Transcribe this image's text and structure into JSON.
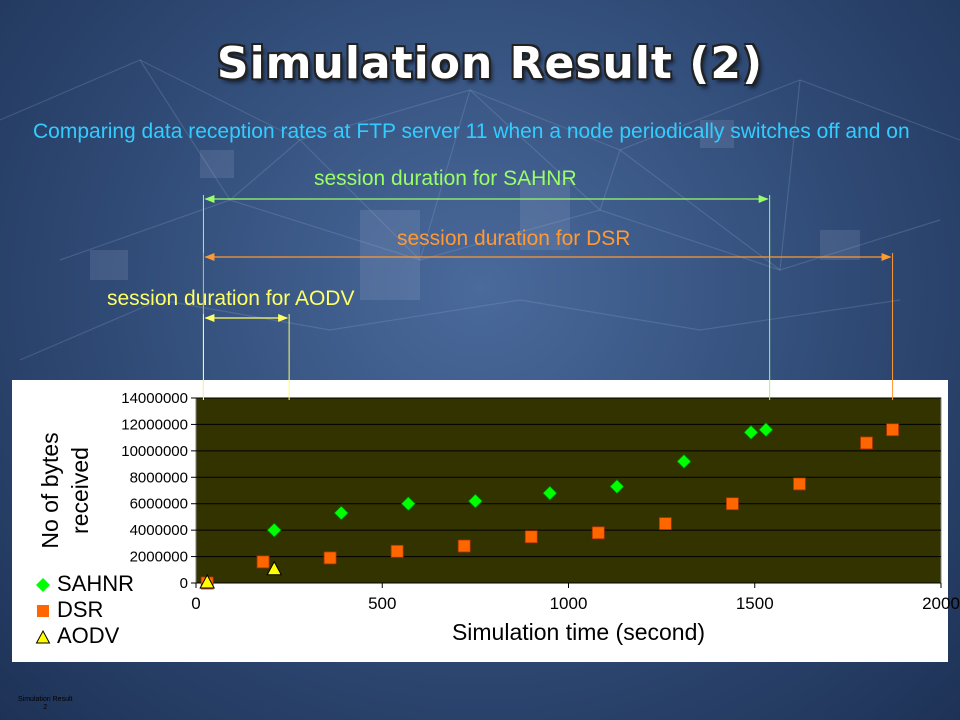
{
  "slide": {
    "title": "Simulation Result (2)",
    "subtitle": "Comparing data reception rates at FTP server 11 when a node periodically switches off and on",
    "footer_title": "Simulation Result",
    "footer_page": "2",
    "colors": {
      "title": "#ffffff",
      "subtitle": "#33ccff",
      "sahnr": "#00ff00",
      "dsr": "#ff6600",
      "aodv": "#ffff00",
      "plot_bg": "#333300"
    }
  },
  "annotations": [
    {
      "text": "session duration for SAHNR",
      "color": "#99ff66",
      "start_x": 20,
      "end_x": 1540
    },
    {
      "text": "session duration for DSR",
      "color": "#ff9933",
      "start_x": 20,
      "end_x": 1870
    },
    {
      "text": "session duration for AODV",
      "color": "#ffff66",
      "start_x": 20,
      "end_x": 250
    }
  ],
  "chart_data": {
    "type": "scatter",
    "xlabel": "Simulation time (second)",
    "ylabel": "No of bytes received",
    "xlim": [
      0,
      2000
    ],
    "ylim": [
      0,
      14000000
    ],
    "x_ticks": [
      0,
      500,
      1000,
      1500,
      2000
    ],
    "x_tick_labels": [
      "0",
      "500",
      "1000",
      "1500",
      "2000"
    ],
    "y_ticks": [
      0,
      2000000,
      4000000,
      6000000,
      8000000,
      10000000,
      12000000,
      14000000
    ],
    "y_tick_labels": [
      "0",
      "2000000",
      "4000000",
      "6000000",
      "8000000",
      "10000000",
      "12000000",
      "14000000"
    ],
    "grid": "horizontal",
    "legend_position": "bottom-left",
    "series": [
      {
        "name": "SAHNR",
        "marker": "diamond",
        "color": "#00ff00",
        "x": [
          210,
          390,
          570,
          750,
          950,
          1130,
          1310,
          1490,
          1530
        ],
        "y": [
          4000000,
          5300000,
          6000000,
          6200000,
          6800000,
          7300000,
          9200000,
          11400000,
          11600000
        ]
      },
      {
        "name": "DSR",
        "marker": "square",
        "color": "#ff6600",
        "x": [
          30,
          180,
          360,
          540,
          720,
          900,
          1080,
          1260,
          1440,
          1620,
          1800,
          1870
        ],
        "y": [
          0,
          1600000,
          1900000,
          2400000,
          2800000,
          3500000,
          3800000,
          4500000,
          6000000,
          7500000,
          10600000,
          11600000
        ]
      },
      {
        "name": "AODV",
        "marker": "triangle",
        "color": "#ffff00",
        "x": [
          30,
          210
        ],
        "y": [
          0,
          1000000
        ]
      }
    ]
  }
}
